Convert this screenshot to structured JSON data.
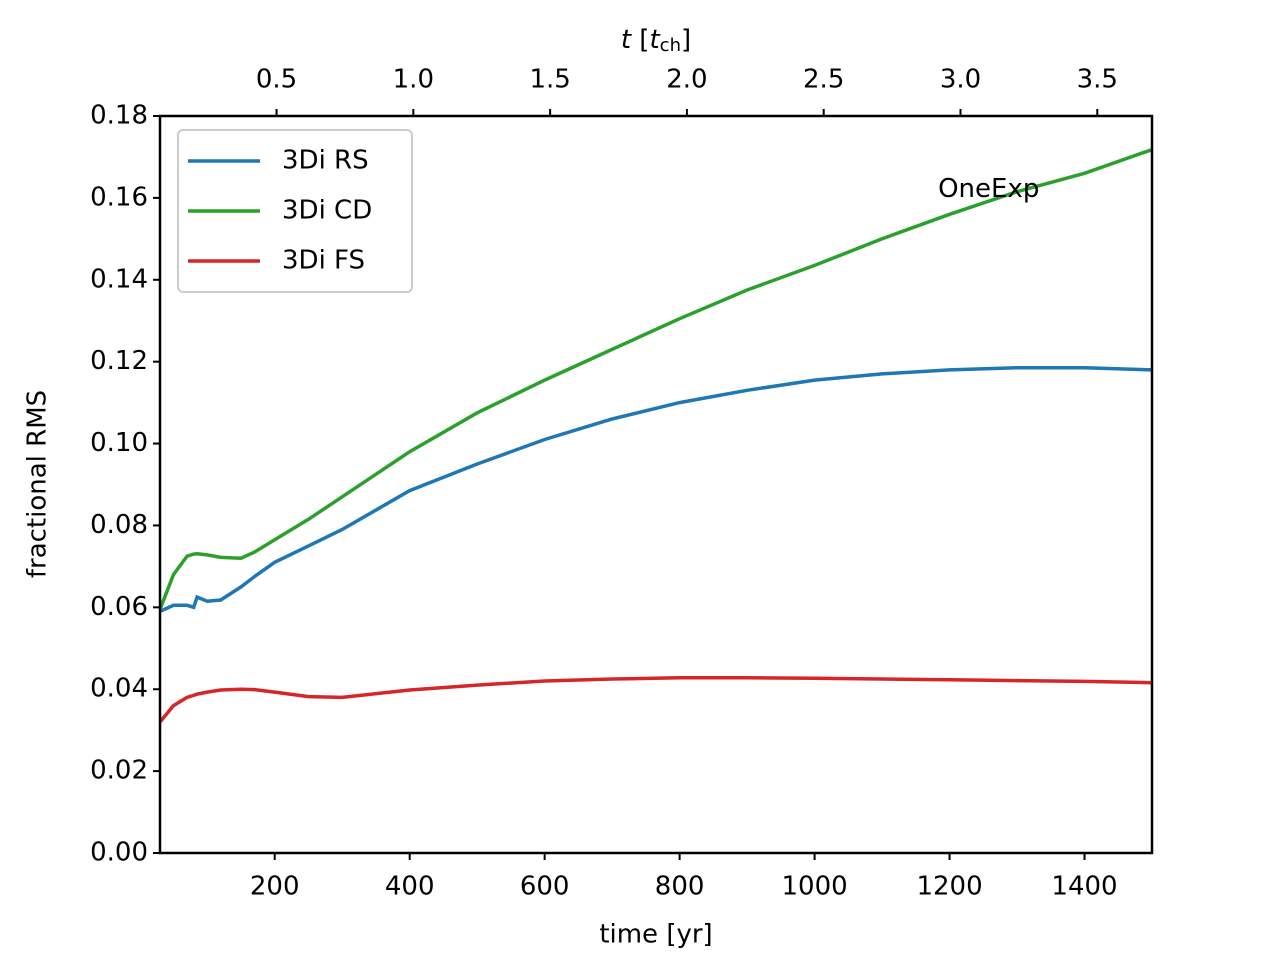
{
  "chart_data": {
    "type": "line",
    "xlabel": "time [yr]",
    "ylabel": "fractional RMS",
    "x2label_parts": [
      "t",
      " [",
      "t",
      "ch",
      "]"
    ],
    "annotation": {
      "text": "OneExp",
      "x": 1183,
      "y": 0.162
    },
    "x": [
      30,
      50,
      70,
      80,
      85,
      100,
      120,
      150,
      170,
      200,
      250,
      300,
      400,
      500,
      600,
      700,
      800,
      900,
      1000,
      1100,
      1200,
      1300,
      1400,
      1500
    ],
    "series": [
      {
        "name": "3Di RS",
        "color": "#1f77b4",
        "values": [
          0.059,
          0.0605,
          0.0605,
          0.06,
          0.0625,
          0.0615,
          0.0618,
          0.065,
          0.0675,
          0.071,
          0.075,
          0.079,
          0.0885,
          0.095,
          0.101,
          0.106,
          0.11,
          0.113,
          0.1155,
          0.117,
          0.118,
          0.1185,
          0.1185,
          0.118
        ]
      },
      {
        "name": "3Di CD",
        "color": "#2ca02c",
        "values": [
          0.0595,
          0.068,
          0.0725,
          0.073,
          0.0731,
          0.0728,
          0.0722,
          0.072,
          0.0735,
          0.0765,
          0.0815,
          0.087,
          0.098,
          0.1075,
          0.1155,
          0.123,
          0.1305,
          0.1375,
          0.1435,
          0.15,
          0.156,
          0.1615,
          0.166,
          0.1718
        ]
      },
      {
        "name": "3Di FS",
        "color": "#d62728",
        "values": [
          0.032,
          0.036,
          0.038,
          0.0385,
          0.0388,
          0.0393,
          0.0398,
          0.04,
          0.0399,
          0.0393,
          0.0382,
          0.038,
          0.0398,
          0.041,
          0.042,
          0.0425,
          0.0428,
          0.0428,
          0.0427,
          0.0425,
          0.0423,
          0.0421,
          0.0419,
          0.0416
        ]
      }
    ],
    "xlim": [
      30,
      1500
    ],
    "xticks": [
      200,
      400,
      600,
      800,
      1000,
      1200,
      1400
    ],
    "ylim": [
      0,
      0.18
    ],
    "yticks": [
      {
        "value": 0,
        "label": "0.00"
      },
      {
        "value": 0.02,
        "label": "0.02"
      },
      {
        "value": 0.04,
        "label": "0.04"
      },
      {
        "value": 0.06,
        "label": "0.06"
      },
      {
        "value": 0.08,
        "label": "0.08"
      },
      {
        "value": 0.1,
        "label": "0.10"
      },
      {
        "value": 0.12,
        "label": "0.12"
      },
      {
        "value": 0.14,
        "label": "0.14"
      },
      {
        "value": 0.16,
        "label": "0.16"
      },
      {
        "value": 0.18,
        "label": "0.18"
      }
    ],
    "x2lim": [
      0.074,
      3.7
    ],
    "x2ticks": [
      0.5,
      {
        "value": 1,
        "label": "1.0"
      },
      1.5,
      {
        "value": 2,
        "label": "2.0"
      },
      2.5,
      {
        "value": 3,
        "label": "3.0"
      },
      3.5
    ],
    "legend": "upper left",
    "grid": false
  }
}
